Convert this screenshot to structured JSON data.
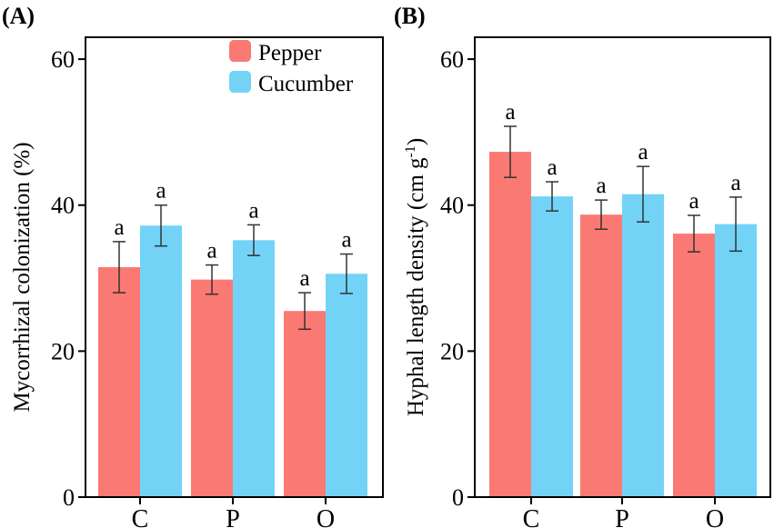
{
  "colors": {
    "pepper": "#fa7a73",
    "cucumber": "#73d3f7"
  },
  "chart_data": [
    {
      "type": "bar",
      "panel_label": "(A)",
      "ylabel": "Mycorrhizal colonization (%)",
      "xlabel": "",
      "ylim": [
        0,
        63
      ],
      "yticks": [
        "0",
        "20",
        "40",
        "60"
      ],
      "categories": [
        "C",
        "P",
        "O"
      ],
      "series": [
        {
          "name": "Pepper",
          "values": [
            31.5,
            29.8,
            25.5
          ],
          "errors": [
            3.5,
            2.0,
            2.5
          ],
          "labels": [
            "a",
            "a",
            "a"
          ]
        },
        {
          "name": "Cucumber",
          "values": [
            37.2,
            35.2,
            30.6
          ],
          "errors": [
            2.8,
            2.1,
            2.7
          ],
          "labels": [
            "a",
            "a",
            "a"
          ]
        }
      ],
      "legend": {
        "placement": "top-right",
        "entries": [
          "Pepper",
          "Cucumber"
        ]
      }
    },
    {
      "type": "bar",
      "panel_label": "(B)",
      "ylabel_main": "Hyphal length density (cm g",
      "ylabel_sup": "-1",
      "ylabel_end": ")",
      "xlabel": "",
      "ylim": [
        0,
        63
      ],
      "yticks": [
        "0",
        "20",
        "40",
        "60"
      ],
      "categories": [
        "C",
        "P",
        "O"
      ],
      "series": [
        {
          "name": "Pepper",
          "values": [
            47.3,
            38.7,
            36.1
          ],
          "errors": [
            3.5,
            2.0,
            2.5
          ],
          "labels": [
            "a",
            "a",
            "a"
          ]
        },
        {
          "name": "Cucumber",
          "values": [
            41.2,
            41.5,
            37.4
          ],
          "errors": [
            2.0,
            3.8,
            3.7
          ],
          "labels": [
            "a",
            "a",
            "a"
          ]
        }
      ]
    }
  ]
}
